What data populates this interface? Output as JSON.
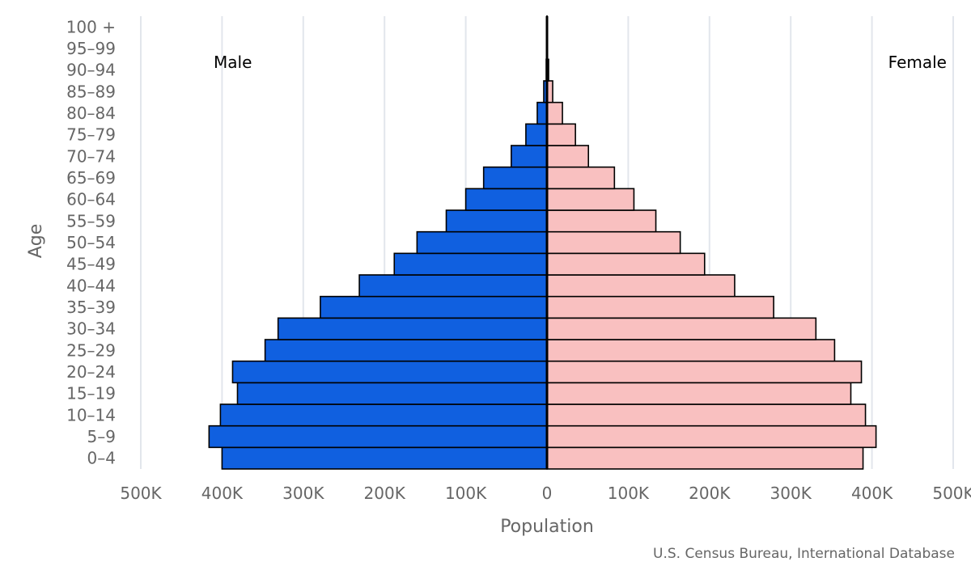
{
  "chart_data": {
    "type": "bar",
    "orientation": "horizontal",
    "categories": [
      "0-4",
      "5-9",
      "10-14",
      "15-19",
      "20-24",
      "25-29",
      "30-34",
      "35-39",
      "40-44",
      "45-49",
      "50-54",
      "55-59",
      "60-64",
      "65-69",
      "70-74",
      "75-79",
      "80-84",
      "85-89",
      "90-94",
      "95-99",
      "100 +"
    ],
    "series": [
      {
        "name": "Male",
        "color": "#1060e0",
        "values": [
          400000,
          416000,
          402000,
          381000,
          387000,
          347000,
          331000,
          279000,
          231000,
          188000,
          160000,
          124000,
          100000,
          78000,
          44000,
          26000,
          12000,
          4000,
          1000,
          200,
          50
        ]
      },
      {
        "name": "Female",
        "color": "#f9c0c0",
        "values": [
          389000,
          405000,
          392000,
          374000,
          387000,
          354000,
          331000,
          279000,
          231000,
          194000,
          164000,
          134000,
          107000,
          83000,
          51000,
          35000,
          19000,
          7000,
          2000,
          400,
          100
        ]
      }
    ],
    "xlabel": "Population",
    "ylabel": "Age",
    "xlim": [
      -500000,
      500000
    ],
    "xticks": [
      "500K",
      "400K",
      "300K",
      "200K",
      "100K",
      "0",
      "100K",
      "200K",
      "300K",
      "400K",
      "500K"
    ],
    "grid": true,
    "legend": {
      "left": "Male",
      "right": "Female"
    },
    "source": "U.S. Census Bureau, International Database"
  }
}
